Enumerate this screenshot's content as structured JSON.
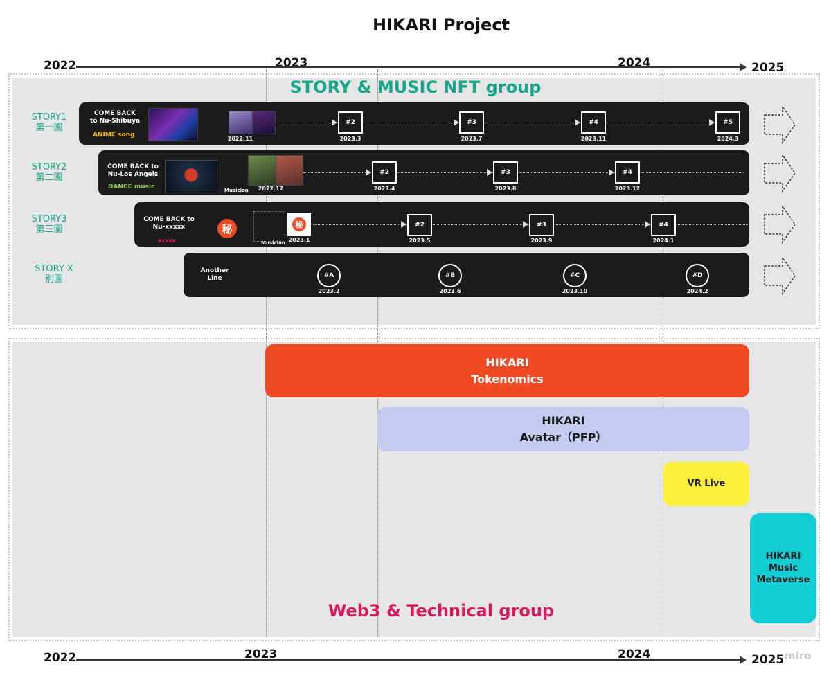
{
  "title": "HIKARI Project",
  "axis_years": {
    "y2022": "2022",
    "y2023": "2023",
    "y2024": "2024",
    "y2025": "2025"
  },
  "story_group": {
    "title": "STORY & MUSIC NFT group",
    "title_color": "#17a589",
    "lanes": [
      {
        "label_line1": "STORY1",
        "label_line2": "第一園",
        "text_line1": "COME BACK",
        "text_line2": "to Nu-Shibuya",
        "tag": "ANIME song",
        "tag_color": "#f5b400",
        "musician": "",
        "start_date": "2022.11",
        "milestones": [
          {
            "label": "#2",
            "date": "2023.3"
          },
          {
            "label": "#3",
            "date": "2023.7"
          },
          {
            "label": "#4",
            "date": "2023.11"
          },
          {
            "label": "#5",
            "date": "2024.3"
          }
        ]
      },
      {
        "label_line1": "STORY2",
        "label_line2": "第二園",
        "text_line1": "COME BACK to",
        "text_line2": "Nu-Los Angels",
        "tag": "DANCE music",
        "tag_color": "#8fd14f",
        "musician": "Musician",
        "start_date": "2022.12",
        "milestones": [
          {
            "label": "#2",
            "date": "2023.4"
          },
          {
            "label": "#3",
            "date": "2023.8"
          },
          {
            "label": "#4",
            "date": "2023.12"
          }
        ]
      },
      {
        "label_line1": "STORY3",
        "label_line2": "第三園",
        "text_line1": "COME BACK to",
        "text_line2": "Nu-xxxxx",
        "tag": "xxxxx",
        "tag_color": "#e91e63",
        "musician": "Musician",
        "start_date": "2023.1",
        "emblem": "秘",
        "milestones": [
          {
            "label": "#2",
            "date": "2023.5"
          },
          {
            "label": "#3",
            "date": "2023.9"
          },
          {
            "label": "#4",
            "date": "2024.1"
          }
        ]
      },
      {
        "label_line1": "STORY X",
        "label_line2": "別園",
        "text_line1": "Another",
        "text_line2": "Line",
        "milestones": [
          {
            "label": "#A",
            "date": "2023.2"
          },
          {
            "label": "#B",
            "date": "2023.6"
          },
          {
            "label": "#C",
            "date": "2023.10"
          },
          {
            "label": "#D",
            "date": "2024.2"
          }
        ]
      }
    ]
  },
  "web3_group": {
    "title": "Web3 & Technical group",
    "title_color": "#d81b60",
    "bars": {
      "tokenomics": {
        "line1": "HIKARI",
        "line2": "Tokenomics",
        "color": "#f04a24",
        "text_color": "#ffffff"
      },
      "avatar": {
        "line1": "HIKARI",
        "line2": "Avatar（PFP）",
        "color": "#c5cbf0",
        "text_color": "#1a1a1a"
      },
      "vr": {
        "line1": "VR Live",
        "color": "#fbf13b",
        "text_color": "#1a1a1a"
      },
      "metaverse": {
        "line1": "HIKARI",
        "line2": "Music",
        "line3": "Metaverse",
        "color": "#13cdd4",
        "text_color": "#1a1a1a"
      }
    }
  },
  "watermark": "miro"
}
